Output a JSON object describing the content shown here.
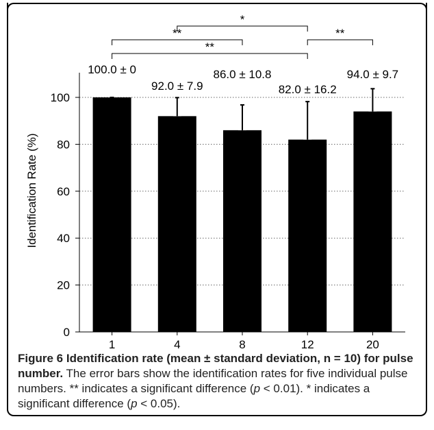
{
  "chart_data": {
    "type": "bar",
    "categories": [
      "1",
      "4",
      "8",
      "12",
      "20"
    ],
    "values": [
      100.0,
      92.0,
      86.0,
      82.0,
      94.0
    ],
    "errors": [
      0,
      7.9,
      10.8,
      16.2,
      9.7
    ],
    "value_labels": [
      "100.0 ± 0",
      "92.0 ± 7.9",
      "86.0 ± 10.8",
      "82.0 ± 16.2",
      "94.0 ± 9.7"
    ],
    "ylabel": "Identification Rate (%)",
    "xlabel": "",
    "ylim": [
      0,
      100
    ],
    "yticks": [
      0,
      20,
      40,
      60,
      80,
      100
    ],
    "grid": "horizontal dotted",
    "bar_color": "#000000",
    "significance": [
      {
        "from": "4",
        "to": "12",
        "label": "*"
      },
      {
        "from": "1",
        "to": "8",
        "label": "**"
      },
      {
        "from": "12",
        "to": "20",
        "label": "**"
      },
      {
        "from": "1",
        "to": "12",
        "label": "**"
      }
    ]
  },
  "caption": {
    "label": "Figure 6",
    "title": "Identification rate (mean ± standard deviation, n = 10) for pulse number.",
    "body_1": "The error bars show the identification rates for five individual pulse numbers. ** indicates a significant difference (",
    "p1": "p",
    "body_2": " < 0.01). * indicates a significant difference (",
    "p2": "p",
    "body_3": " < 0.05)."
  }
}
